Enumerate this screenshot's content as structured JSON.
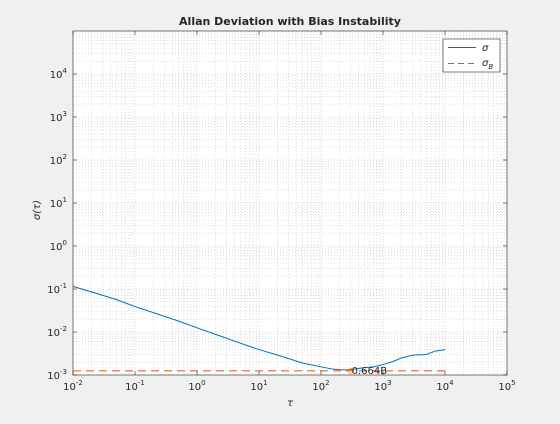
{
  "chart_data": {
    "type": "line",
    "title": "Allan Deviation with Bias Instability",
    "xlabel": "τ",
    "ylabel": "σ(τ)",
    "xscale": "log",
    "yscale": "log",
    "xlim": [
      0.01,
      100000
    ],
    "ylim": [
      0.001,
      100000
    ],
    "x_ticks": [
      {
        "base": "10",
        "exp": "-2"
      },
      {
        "base": "10",
        "exp": "-1"
      },
      {
        "base": "10",
        "exp": "0"
      },
      {
        "base": "10",
        "exp": "1"
      },
      {
        "base": "10",
        "exp": "2"
      },
      {
        "base": "10",
        "exp": "3"
      },
      {
        "base": "10",
        "exp": "4"
      },
      {
        "base": "10",
        "exp": "5"
      }
    ],
    "y_ticks": [
      {
        "base": "10",
        "exp": "-3"
      },
      {
        "base": "10",
        "exp": "-2"
      },
      {
        "base": "10",
        "exp": "-1"
      },
      {
        "base": "10",
        "exp": "0"
      },
      {
        "base": "10",
        "exp": "1"
      },
      {
        "base": "10",
        "exp": "2"
      },
      {
        "base": "10",
        "exp": "3"
      },
      {
        "base": "10",
        "exp": "4"
      }
    ],
    "grid": true,
    "minor_grid": true,
    "legend_position": "top-right",
    "series": [
      {
        "name": "σ",
        "style": "solid",
        "color": "#0072bd",
        "x": [
          0.01,
          0.02,
          0.05,
          0.1,
          0.2,
          0.5,
          1,
          2,
          5,
          10,
          20,
          50,
          100,
          150,
          200,
          250,
          300,
          350,
          400,
          500,
          700,
          1000,
          1500,
          2000,
          3000,
          5000,
          7000,
          10000
        ],
        "y": [
          0.115,
          0.085,
          0.057,
          0.039,
          0.028,
          0.018,
          0.0125,
          0.0088,
          0.0055,
          0.0039,
          0.0029,
          0.0019,
          0.00155,
          0.00138,
          0.00133,
          0.00132,
          0.00133,
          0.00137,
          0.00142,
          0.00148,
          0.00155,
          0.00175,
          0.0021,
          0.0025,
          0.0029,
          0.003,
          0.0036,
          0.0039
        ]
      },
      {
        "name": "σB",
        "label_main": "σ",
        "label_sub": "B",
        "style": "dashed",
        "color": "#d95319",
        "x": [
          0.01,
          10000
        ],
        "y": [
          0.00125,
          0.00125
        ]
      }
    ],
    "annotations": [
      {
        "text": "0.664B",
        "x": 300,
        "y": 0.00125
      }
    ]
  }
}
